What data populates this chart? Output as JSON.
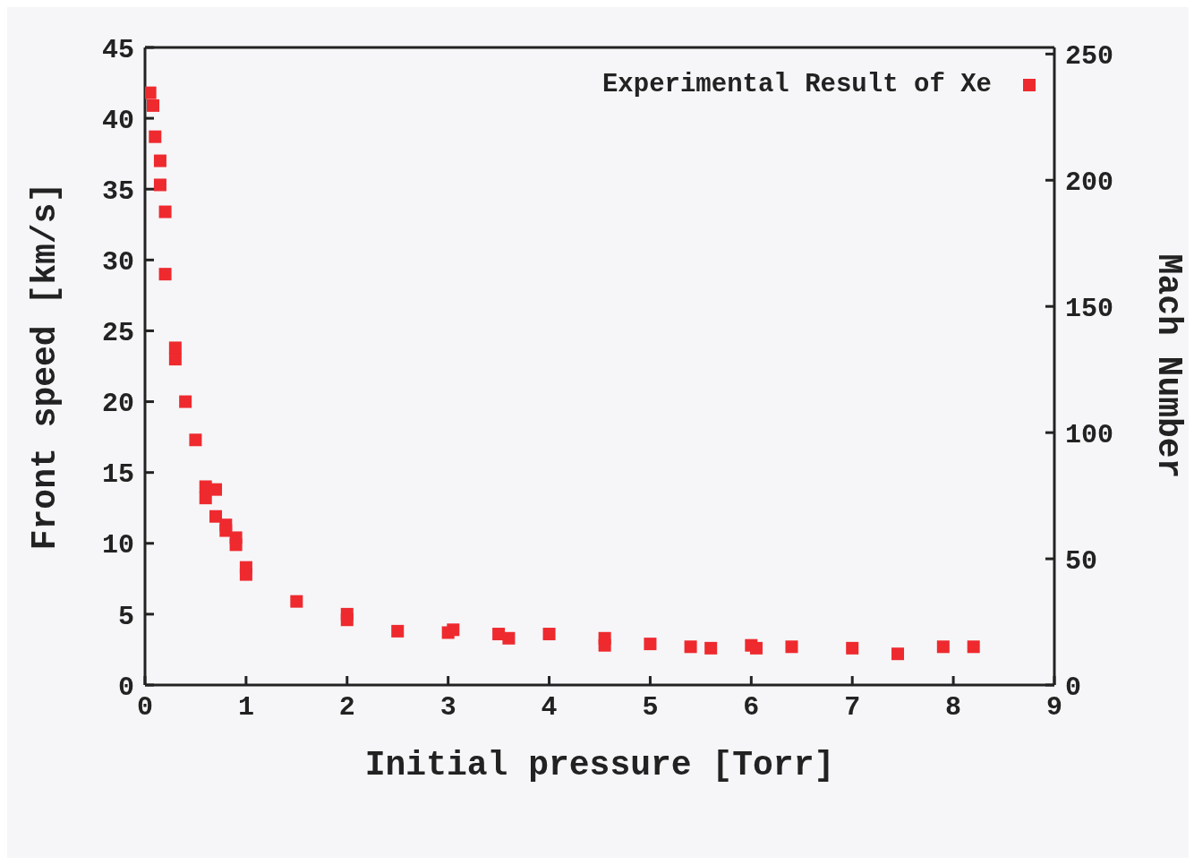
{
  "chart_data": {
    "type": "scatter",
    "xlabel": "Initial pressure [Torr]",
    "ylabel": "Front speed [km/s]",
    "y2label": "Mach Number",
    "xlim": [
      0,
      9
    ],
    "xticks": [
      0,
      1,
      2,
      3,
      4,
      5,
      6,
      7,
      8,
      9
    ],
    "ylim": [
      0,
      45
    ],
    "yticks": [
      0,
      5,
      10,
      15,
      20,
      25,
      30,
      35,
      40,
      45
    ],
    "y2lim": [
      0,
      252.6
    ],
    "y2ticks": [
      0,
      50,
      100,
      150,
      200,
      250
    ],
    "legend": "top right",
    "marker": "square",
    "series": [
      {
        "name": "Experimental Result of Xe",
        "color": "#ee2a2f",
        "x": [
          0.05,
          0.08,
          0.1,
          0.15,
          0.15,
          0.2,
          0.2,
          0.3,
          0.3,
          0.4,
          0.5,
          0.6,
          0.6,
          0.7,
          0.7,
          0.8,
          0.8,
          0.9,
          0.9,
          1.0,
          1.0,
          1.5,
          2.0,
          2.0,
          2.5,
          3.0,
          3.05,
          3.5,
          3.6,
          4.0,
          4.55,
          4.55,
          5.0,
          5.4,
          5.6,
          6.0,
          6.05,
          6.4,
          7.0,
          7.45,
          7.9,
          8.2
        ],
        "values": [
          41.8,
          40.9,
          38.7,
          37.0,
          35.3,
          33.4,
          29.0,
          23.8,
          23.0,
          20.0,
          17.3,
          14.0,
          13.2,
          13.8,
          11.9,
          11.3,
          10.9,
          10.4,
          9.9,
          8.3,
          7.8,
          5.9,
          5.0,
          4.6,
          3.8,
          3.7,
          3.9,
          3.6,
          3.3,
          3.6,
          3.3,
          2.8,
          2.9,
          2.7,
          2.6,
          2.8,
          2.6,
          2.7,
          2.6,
          2.2,
          2.7,
          2.7
        ]
      }
    ]
  }
}
